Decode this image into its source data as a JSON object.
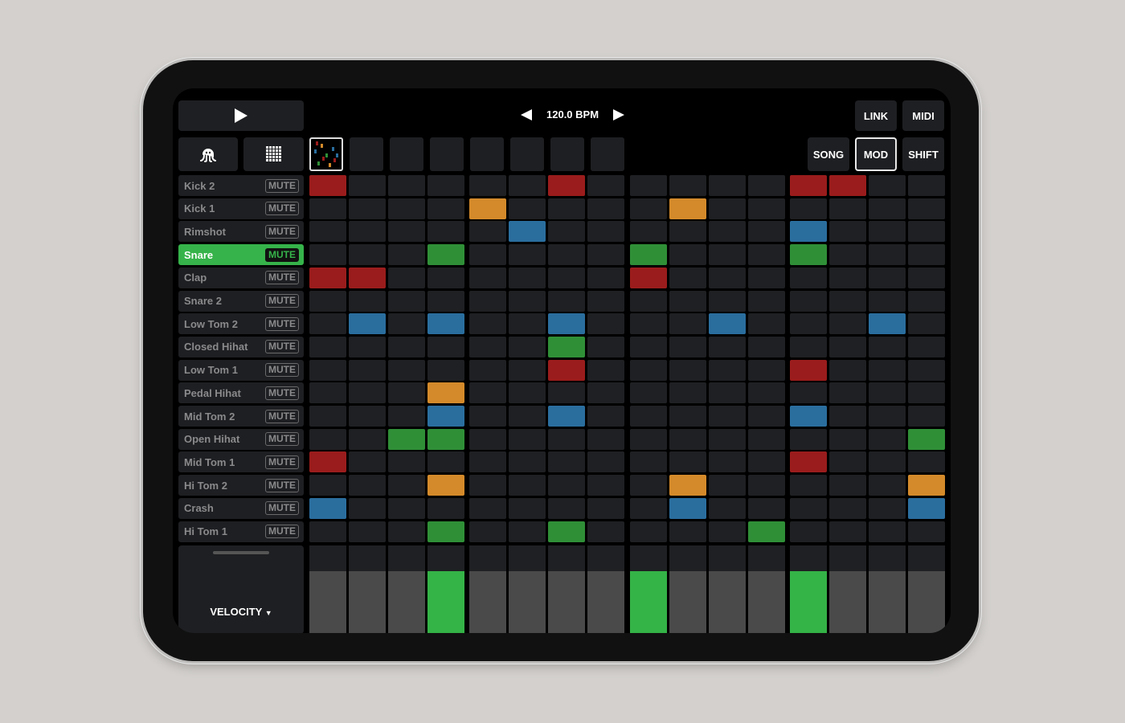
{
  "transport": {
    "play_icon": "play-icon",
    "bpm": "120.0 BPM",
    "bpm_decrease_icon": "triangle-left-icon",
    "bpm_increase_icon": "triangle-right-icon"
  },
  "buttons": {
    "link": "LINK",
    "midi": "MIDI",
    "song": "SONG",
    "mod": "MOD",
    "shift": "SHIFT",
    "selected": "MOD"
  },
  "tools": {
    "octopus_icon": "octopus-icon",
    "grid_icon": "grid-icon"
  },
  "patterns": {
    "count": 8,
    "selected": 0
  },
  "colors": {
    "red": "#9b1c1c",
    "orange": "#d48a2a",
    "blue": "#2a6e9e",
    "green": "#2f8f37",
    "empty": "#1f2023",
    "active_track": "#36b34a",
    "velocity_off": "#4a4a4a",
    "velocity_on": "#34b347"
  },
  "tracks": [
    {
      "name": "Kick 2",
      "mute": "MUTE",
      "steps": {
        "0": "red",
        "6": "red",
        "12": "red",
        "13": "red"
      }
    },
    {
      "name": "Kick 1",
      "mute": "MUTE",
      "steps": {
        "4": "orange",
        "9": "orange"
      }
    },
    {
      "name": "Rimshot",
      "mute": "MUTE",
      "steps": {
        "5": "blue",
        "12": "blue"
      }
    },
    {
      "name": "Snare",
      "mute": "MUTE",
      "active": true,
      "steps": {
        "3": "green",
        "8": "green",
        "12": "green"
      }
    },
    {
      "name": "Clap",
      "mute": "MUTE",
      "steps": {
        "0": "red",
        "1": "red",
        "8": "red"
      }
    },
    {
      "name": "Snare 2",
      "mute": "MUTE",
      "steps": {}
    },
    {
      "name": "Low Tom 2",
      "mute": "MUTE",
      "steps": {
        "1": "blue",
        "3": "blue",
        "6": "blue",
        "10": "blue",
        "14": "blue"
      }
    },
    {
      "name": "Closed Hihat",
      "mute": "MUTE",
      "steps": {
        "6": "green"
      }
    },
    {
      "name": "Low Tom 1",
      "mute": "MUTE",
      "steps": {
        "6": "red",
        "12": "red"
      }
    },
    {
      "name": "Pedal Hihat",
      "mute": "MUTE",
      "steps": {
        "3": "orange"
      }
    },
    {
      "name": "Mid Tom 2",
      "mute": "MUTE",
      "steps": {
        "3": "blue",
        "6": "blue",
        "12": "blue"
      }
    },
    {
      "name": "Open Hihat",
      "mute": "MUTE",
      "steps": {
        "2": "green",
        "3": "green",
        "15": "green"
      }
    },
    {
      "name": "Mid Tom 1",
      "mute": "MUTE",
      "steps": {
        "0": "red",
        "12": "red"
      }
    },
    {
      "name": "Hi Tom 2",
      "mute": "MUTE",
      "steps": {
        "3": "orange",
        "9": "orange",
        "15": "orange"
      }
    },
    {
      "name": "Crash",
      "mute": "MUTE",
      "steps": {
        "0": "blue",
        "9": "blue",
        "15": "blue"
      }
    },
    {
      "name": "Hi Tom 1",
      "mute": "MUTE",
      "steps": {
        "3": "green",
        "6": "green",
        "11": "green"
      }
    }
  ],
  "velocity": {
    "label": "VELOCITY",
    "dropdown_icon": "caret-down-icon",
    "active_steps": [
      3,
      8,
      12
    ]
  }
}
